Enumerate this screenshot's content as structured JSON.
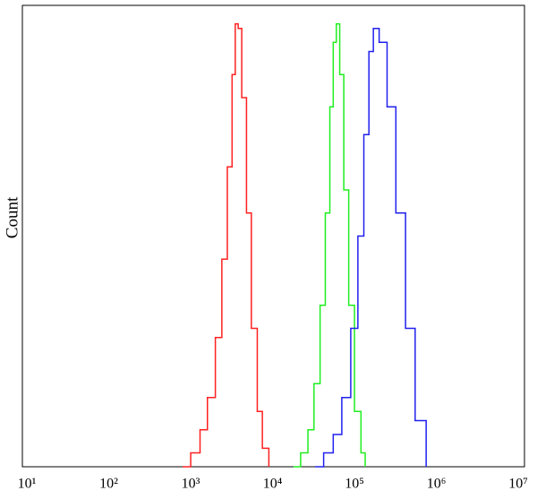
{
  "chart_data": {
    "type": "line",
    "y_label": "Count",
    "xscale": "log",
    "xlim": [
      8.8,
      11900000
    ],
    "xticks": [
      {
        "value": 10,
        "label": "10¹"
      },
      {
        "value": 100,
        "label": "10²"
      },
      {
        "value": 1000,
        "label": "10³"
      },
      {
        "value": 10000,
        "label": "10⁴"
      },
      {
        "value": 100000,
        "label": "10⁵"
      },
      {
        "value": 1000000,
        "label": "10⁶"
      },
      {
        "value": 10000000,
        "label": "10⁷"
      }
    ],
    "ylim": [
      0,
      100
    ],
    "series": [
      {
        "color": "#ff2020",
        "x": [
          800,
          1000,
          1300,
          1600,
          2000,
          2400,
          2800,
          3200,
          3500,
          3800,
          4200,
          4800,
          5500,
          6500,
          7500,
          9000
        ],
        "values": [
          0,
          3,
          8,
          15,
          28,
          45,
          65,
          85,
          96,
          95,
          80,
          55,
          30,
          12,
          4,
          0
        ]
      },
      {
        "color": "#20ee20",
        "x": [
          18000,
          22000,
          27000,
          32000,
          38000,
          44000,
          50000,
          55000,
          60000,
          66000,
          74000,
          85000,
          100000,
          120000,
          135000
        ],
        "values": [
          0,
          3,
          8,
          18,
          35,
          55,
          78,
          92,
          96,
          85,
          60,
          35,
          12,
          3,
          0
        ]
      },
      {
        "color": "#2020ee",
        "x": [
          33000,
          42000,
          55000,
          70000,
          90000,
          110000,
          130000,
          150000,
          170000,
          200000,
          250000,
          320000,
          420000,
          550000,
          750000
        ],
        "values": [
          0,
          3,
          7,
          15,
          30,
          50,
          72,
          90,
          95,
          92,
          78,
          55,
          30,
          10,
          0
        ]
      }
    ]
  }
}
